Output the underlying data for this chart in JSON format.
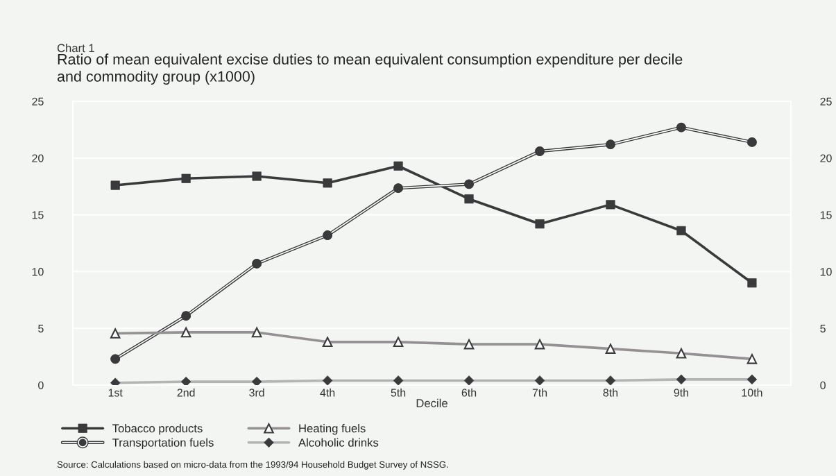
{
  "chart_data": {
    "type": "line",
    "subtitle": "Chart 1",
    "title": "Ratio of mean equivalent excise duties to mean equivalent consumption expenditure per decile\nand commodity group (x1000)",
    "xlabel": "Decile",
    "categories": [
      "1st",
      "2nd",
      "3rd",
      "4th",
      "5th",
      "6th",
      "7th",
      "8th",
      "9th",
      "10th"
    ],
    "series": [
      {
        "name": "Tobacco products",
        "color": "#3a3a3c",
        "marker": "square",
        "values": [
          17.6,
          18.2,
          18.4,
          17.8,
          19.3,
          16.4,
          14.2,
          15.9,
          13.6,
          9.0
        ]
      },
      {
        "name": "Transportation fuels",
        "color": "#3a3a3c",
        "marker": "circle",
        "values": [
          2.3,
          6.1,
          10.7,
          13.2,
          17.35,
          17.7,
          20.6,
          21.2,
          22.7,
          21.4
        ]
      },
      {
        "name": "Heating fuels",
        "color": "#949094",
        "marker": "triangle",
        "values": [
          4.55,
          4.65,
          4.65,
          3.8,
          3.8,
          3.6,
          3.6,
          3.2,
          2.8,
          2.3
        ]
      },
      {
        "name": "Alcoholic drinks",
        "color": "#b4b4b4",
        "marker": "diamond",
        "values": [
          0.2,
          0.3,
          0.3,
          0.4,
          0.4,
          0.4,
          0.4,
          0.4,
          0.5,
          0.5
        ]
      }
    ],
    "ylim": [
      0,
      25
    ],
    "yticks": [
      0,
      5,
      10,
      15,
      20,
      25
    ],
    "y2lim": [
      0,
      25
    ],
    "y2ticks": [
      0,
      5,
      10,
      15,
      20,
      25
    ],
    "grid": "y",
    "legend": "bottom left",
    "annotations": [
      "Source: Calculations based on micro-data from the 1993/94 Household Budget Survey of NSSG."
    ]
  }
}
